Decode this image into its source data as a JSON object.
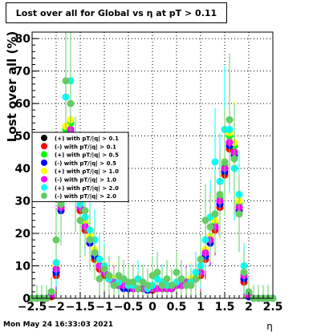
{
  "chart_data": {
    "type": "scatter",
    "title": "Lost over all for Global vs   η at pT > 0.11",
    "xlabel": "η",
    "ylabel": "Lost over all (%)",
    "xlim": [
      -2.5,
      2.5
    ],
    "ylim": [
      0,
      82
    ],
    "xticks": [
      -2.5,
      -2,
      -1.5,
      -1,
      -0.5,
      0,
      0.5,
      1,
      1.5,
      2,
      2.5
    ],
    "xtick_labels": [
      "−2.5",
      "−2",
      "−1.5",
      "−1",
      "−0.5",
      "0",
      "0.5",
      "1",
      "1.5",
      "2",
      "2.5"
    ],
    "yticks": [
      0,
      10,
      20,
      30,
      40,
      50,
      60,
      70,
      80
    ],
    "ytick_labels": [
      "0",
      "10",
      "20",
      "30",
      "40",
      "50",
      "60",
      "70",
      "80"
    ],
    "grid": true,
    "legend_position": "left",
    "x": [
      -2.5,
      -2.4,
      -2.3,
      -2.2,
      -2.1,
      -2.0,
      -1.9,
      -1.8,
      -1.7,
      -1.6,
      -1.5,
      -1.4,
      -1.3,
      -1.2,
      -1.1,
      -1.0,
      -0.9,
      -0.8,
      -0.7,
      -0.6,
      -0.5,
      -0.4,
      -0.3,
      -0.2,
      -0.1,
      0.0,
      0.1,
      0.2,
      0.3,
      0.4,
      0.5,
      0.6,
      0.7,
      0.8,
      0.9,
      1.0,
      1.1,
      1.2,
      1.3,
      1.4,
      1.5,
      1.6,
      1.7,
      1.8,
      1.9,
      2.0,
      2.1,
      2.2,
      2.3,
      2.4,
      2.5
    ],
    "series": [
      {
        "name": "(+) with pT/|q| > 0.1",
        "color": "#000000",
        "marker": "circle",
        "values": [
          0,
          0,
          0,
          0,
          0.5,
          8,
          28,
          50,
          52,
          35,
          28,
          22,
          18,
          13,
          10,
          8,
          6,
          5,
          4,
          4,
          4,
          3,
          3,
          3,
          2.5,
          3,
          3,
          3,
          3,
          3,
          4,
          4,
          5,
          5,
          6,
          8,
          13,
          18,
          22,
          30,
          40,
          48,
          45,
          28,
          6,
          0.5,
          0,
          0,
          0,
          0,
          0
        ]
      },
      {
        "name": "(-) with pT/|q| > 0.1",
        "color": "#ff0000",
        "marker": "circle",
        "values": [
          0,
          0,
          0,
          0,
          0.5,
          7,
          27,
          48,
          50,
          34,
          27,
          21,
          17,
          12,
          9,
          7,
          6,
          5,
          4,
          4,
          3,
          3,
          3,
          3,
          2.5,
          2.5,
          3,
          3,
          3,
          3,
          4,
          4,
          5,
          5,
          6,
          7,
          12,
          17,
          21,
          28,
          38,
          46,
          43,
          26,
          5,
          0.5,
          0,
          0,
          0,
          0,
          0
        ]
      },
      {
        "name": "(+) with pT/|q| > 0.5",
        "color": "#00ff00",
        "marker": "circle",
        "values": [
          0,
          0,
          0,
          0,
          1,
          9,
          29,
          52,
          54,
          36,
          29,
          23,
          19,
          14,
          11,
          8,
          7,
          5,
          4,
          4,
          4,
          3,
          3,
          3,
          3,
          3,
          3,
          3,
          3,
          4,
          4,
          4,
          5,
          6,
          7,
          9,
          14,
          19,
          23,
          31,
          41,
          50,
          47,
          29,
          7,
          1,
          0,
          0,
          0,
          0,
          0
        ]
      },
      {
        "name": "(-) with pT/|q| > 0.5",
        "color": "#0000ff",
        "marker": "circle",
        "values": [
          0,
          0,
          0,
          0,
          1,
          8,
          27,
          49,
          51,
          33,
          28,
          22,
          17,
          13,
          10,
          8,
          6,
          5,
          4,
          3,
          3,
          3,
          3,
          3,
          2.5,
          3,
          3,
          3,
          3,
          3,
          4,
          4,
          5,
          5,
          6,
          8,
          13,
          17,
          22,
          29,
          39,
          47,
          44,
          27,
          6,
          0.5,
          0,
          0,
          0,
          0,
          0
        ]
      },
      {
        "name": "(+) with pT/|q| > 1.0",
        "color": "#ffff00",
        "marker": "circle",
        "values": [
          0,
          0,
          0,
          0,
          1,
          10,
          30,
          53,
          55,
          37,
          30,
          24,
          19,
          15,
          11,
          9,
          7,
          6,
          5,
          4,
          4,
          4,
          3,
          3,
          3,
          3,
          3,
          3,
          4,
          4,
          4,
          5,
          5,
          6,
          7,
          9,
          15,
          19,
          24,
          32,
          42,
          51,
          48,
          30,
          8,
          1,
          0,
          0,
          0,
          0,
          0
        ]
      },
      {
        "name": "(-) with pT/|q| > 1.0",
        "color": "#ff00ff",
        "marker": "circle",
        "values": [
          0,
          0,
          0,
          0,
          1,
          9,
          28,
          50,
          52,
          35,
          28,
          22,
          18,
          14,
          10,
          8,
          6,
          5,
          4,
          4,
          4,
          3,
          3,
          3,
          3,
          3,
          3,
          3,
          3,
          3,
          4,
          4,
          5,
          5,
          6,
          8,
          14,
          18,
          22,
          30,
          40,
          48,
          45,
          28,
          7,
          1,
          0,
          0,
          0,
          0,
          0
        ]
      },
      {
        "name": "(+) with pT/|q| > 2.0",
        "color": "#00ffff",
        "marker": "circle",
        "values": [
          0,
          0,
          0,
          0,
          2,
          11,
          33,
          62,
          67,
          40,
          29,
          25,
          21,
          18,
          12,
          10,
          6,
          4,
          5,
          6,
          4,
          4,
          6,
          5,
          3,
          4,
          6,
          5,
          4,
          4,
          5,
          6,
          4,
          5,
          8,
          10,
          18,
          25,
          42,
          36,
          52,
          52,
          40,
          32,
          10,
          2,
          0,
          0,
          0,
          0,
          0
        ]
      },
      {
        "name": "(-) with pT/|q| > 2.0",
        "color": "#66cc66",
        "marker": "circle",
        "values": [
          0,
          0,
          0,
          0,
          2,
          18,
          29,
          67,
          60,
          35,
          24,
          27,
          18,
          14,
          6,
          9,
          7,
          4,
          7,
          6,
          5,
          5,
          3,
          5,
          4,
          7,
          8,
          4,
          6,
          4,
          8,
          6,
          4,
          4,
          6,
          12,
          24,
          22,
          26,
          32,
          42,
          55,
          43,
          26,
          8,
          2,
          0,
          0,
          0,
          0,
          0
        ]
      }
    ]
  },
  "footer": {
    "timestamp": "Mon May 24 16:33:03 2021"
  }
}
